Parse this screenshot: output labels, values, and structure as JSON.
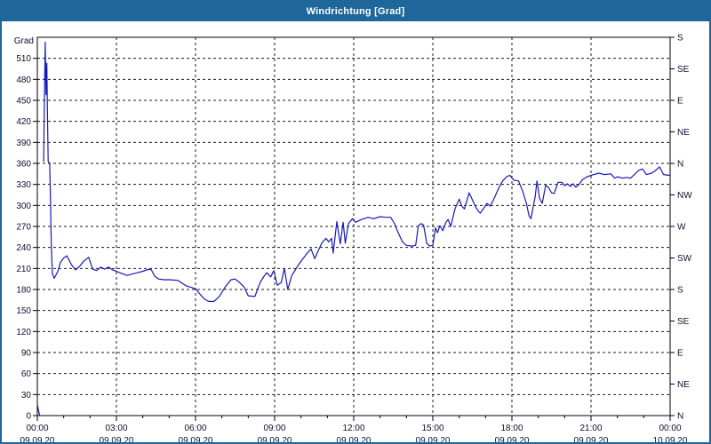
{
  "window": {
    "title": "Windrichtung [Grad]"
  },
  "colors": {
    "titlebar_bg": "#1f669a",
    "titlebar_text": "#ffffff",
    "window_border": "#1f669a",
    "plot_bg": "#ffffff",
    "plot_border": "#000000",
    "grid": "#1c1c1c",
    "tick_text": "#0a1030",
    "line": "#1818bb"
  },
  "chart_data": {
    "type": "line",
    "title": "Windrichtung [Grad]",
    "y_axis_unit_label": "Grad",
    "ylim": [
      0,
      540
    ],
    "y_major_step": 30,
    "y_left_ticks": [
      0,
      30,
      60,
      90,
      120,
      150,
      180,
      210,
      240,
      270,
      300,
      330,
      360,
      390,
      420,
      450,
      480,
      510
    ],
    "y_right_ticks": [
      {
        "deg": 0,
        "label": "N"
      },
      {
        "deg": 45,
        "label": "NE"
      },
      {
        "deg": 90,
        "label": "E"
      },
      {
        "deg": 135,
        "label": "SE"
      },
      {
        "deg": 180,
        "label": "S"
      },
      {
        "deg": 225,
        "label": "SW"
      },
      {
        "deg": 270,
        "label": "W"
      },
      {
        "deg": 315,
        "label": "NW"
      },
      {
        "deg": 360,
        "label": "N"
      },
      {
        "deg": 405,
        "label": "NE"
      },
      {
        "deg": 450,
        "label": "E"
      },
      {
        "deg": 495,
        "label": "SE"
      },
      {
        "deg": 540,
        "label": "S"
      }
    ],
    "xlim_hours": [
      0,
      24
    ],
    "x_minor_step_hours": 1,
    "x_major_ticks": [
      {
        "hour": 0,
        "time": "00:00",
        "date": "09.09.20"
      },
      {
        "hour": 3,
        "time": "03:00",
        "date": "09.09.20"
      },
      {
        "hour": 6,
        "time": "06:00",
        "date": "09.09.20"
      },
      {
        "hour": 9,
        "time": "09:00",
        "date": "09.09.20"
      },
      {
        "hour": 12,
        "time": "12:00",
        "date": "09.09.20"
      },
      {
        "hour": 15,
        "time": "15:00",
        "date": "09.09.20"
      },
      {
        "hour": 18,
        "time": "18:00",
        "date": "09.09.20"
      },
      {
        "hour": 21,
        "time": "21:00",
        "date": "09.09.20"
      },
      {
        "hour": 24,
        "time": "00:00",
        "date": "10.09.20"
      }
    ],
    "grid": "dashed",
    "legend": "none",
    "series": [
      {
        "name": "Windrichtung",
        "unit": "Grad",
        "color": "#1818bb",
        "segments": [
          [
            [
              0,
              16
            ],
            [
              0.05,
              6
            ],
            [
              0.09,
              0
            ]
          ],
          [
            [
              0.24,
              362
            ],
            [
              0.27,
              455
            ],
            [
              0.3,
              533
            ],
            [
              0.33,
              458
            ],
            [
              0.36,
              503
            ],
            [
              0.385,
              430
            ],
            [
              0.41,
              363
            ],
            [
              0.47,
              360
            ],
            [
              0.5,
              308
            ],
            [
              0.53,
              245
            ],
            [
              0.57,
              203
            ],
            [
              0.64,
              196
            ],
            [
              0.78,
              206
            ],
            [
              0.88,
              219
            ],
            [
              1.0,
              225
            ],
            [
              1.12,
              228
            ],
            [
              1.3,
              215
            ],
            [
              1.45,
              208
            ],
            [
              1.6,
              213
            ],
            [
              1.75,
              220
            ],
            [
              1.95,
              226
            ],
            [
              2.1,
              209
            ],
            [
              2.25,
              207
            ],
            [
              2.4,
              212
            ],
            [
              2.55,
              209
            ],
            [
              2.7,
              212
            ],
            [
              2.85,
              208
            ],
            [
              3.0,
              206
            ],
            [
              3.2,
              203
            ],
            [
              3.4,
              200
            ],
            [
              3.6,
              202
            ],
            [
              3.8,
              204
            ],
            [
              4.0,
              206
            ],
            [
              4.15,
              208
            ],
            [
              4.31,
              209
            ],
            [
              4.45,
              199
            ],
            [
              4.6,
              195
            ],
            [
              4.8,
              194
            ],
            [
              5.0,
              194
            ],
            [
              5.33,
              193
            ],
            [
              5.66,
              185
            ],
            [
              6.0,
              181
            ],
            [
              6.2,
              172
            ],
            [
              6.35,
              166
            ],
            [
              6.5,
              163
            ],
            [
              6.7,
              163
            ],
            [
              6.9,
              170
            ],
            [
              7.15,
              185
            ],
            [
              7.35,
              194
            ],
            [
              7.5,
              195
            ],
            [
              7.7,
              189
            ],
            [
              7.85,
              183
            ],
            [
              8.0,
              171
            ],
            [
              8.25,
              170
            ],
            [
              8.45,
              190
            ],
            [
              8.6,
              199
            ],
            [
              8.7,
              204
            ],
            [
              8.85,
              198
            ],
            [
              8.97,
              207
            ],
            [
              9.1,
              186
            ],
            [
              9.25,
              190
            ],
            [
              9.37,
              210
            ],
            [
              9.5,
              180
            ],
            [
              9.65,
              200
            ],
            [
              9.75,
              206
            ],
            [
              9.9,
              215
            ],
            [
              10.05,
              223
            ],
            [
              10.22,
              231
            ],
            [
              10.38,
              238
            ],
            [
              10.52,
              224
            ],
            [
              10.65,
              235
            ],
            [
              10.8,
              247
            ],
            [
              10.95,
              253
            ],
            [
              11.05,
              248
            ],
            [
              11.16,
              253
            ],
            [
              11.22,
              232
            ],
            [
              11.36,
              277
            ],
            [
              11.49,
              245
            ],
            [
              11.6,
              276
            ],
            [
              11.68,
              246
            ],
            [
              11.8,
              274
            ],
            [
              11.95,
              281
            ],
            [
              12.07,
              276
            ],
            [
              12.3,
              280
            ],
            [
              12.55,
              283
            ],
            [
              12.75,
              281
            ],
            [
              13.0,
              284
            ],
            [
              13.2,
              283
            ],
            [
              13.4,
              283
            ],
            [
              13.52,
              276
            ],
            [
              13.7,
              260
            ],
            [
              13.85,
              248
            ],
            [
              14.0,
              243
            ],
            [
              14.2,
              242
            ],
            [
              14.35,
              243
            ],
            [
              14.45,
              271
            ],
            [
              14.55,
              274
            ],
            [
              14.65,
              272
            ],
            [
              14.77,
              246
            ],
            [
              14.88,
              242
            ],
            [
              15.0,
              243
            ],
            [
              15.1,
              268
            ],
            [
              15.18,
              261
            ],
            [
              15.27,
              271
            ],
            [
              15.38,
              264
            ],
            [
              15.5,
              276
            ],
            [
              15.58,
              280
            ],
            [
              15.68,
              270
            ],
            [
              15.84,
              295
            ],
            [
              16.0,
              309
            ],
            [
              16.1,
              299
            ],
            [
              16.2,
              295
            ],
            [
              16.38,
              318
            ],
            [
              16.5,
              308
            ],
            [
              16.62,
              298
            ],
            [
              16.72,
              292
            ],
            [
              16.8,
              289
            ],
            [
              16.95,
              297
            ],
            [
              17.05,
              303
            ],
            [
              17.18,
              299
            ],
            [
              17.35,
              312
            ],
            [
              17.5,
              325
            ],
            [
              17.65,
              335
            ],
            [
              17.8,
              341
            ],
            [
              17.92,
              343
            ],
            [
              18.07,
              336
            ],
            [
              18.25,
              335
            ],
            [
              18.4,
              321
            ],
            [
              18.55,
              303
            ],
            [
              18.65,
              285
            ],
            [
              18.72,
              281
            ],
            [
              18.88,
              312
            ],
            [
              18.95,
              335
            ],
            [
              19.05,
              310
            ],
            [
              19.15,
              303
            ],
            [
              19.28,
              329
            ],
            [
              19.4,
              325
            ],
            [
              19.5,
              318
            ],
            [
              19.6,
              317
            ],
            [
              19.75,
              333
            ],
            [
              19.9,
              333
            ],
            [
              20.0,
              328
            ],
            [
              20.1,
              331
            ],
            [
              20.22,
              327
            ],
            [
              20.32,
              331
            ],
            [
              20.42,
              326
            ],
            [
              20.55,
              330
            ],
            [
              20.68,
              337
            ],
            [
              20.85,
              341
            ],
            [
              21.1,
              344
            ],
            [
              21.3,
              346
            ],
            [
              21.5,
              344
            ],
            [
              21.75,
              345
            ],
            [
              21.9,
              339
            ],
            [
              22.0,
              341
            ],
            [
              22.18,
              339
            ],
            [
              22.35,
              340
            ],
            [
              22.5,
              339
            ],
            [
              22.7,
              346
            ],
            [
              22.8,
              350
            ],
            [
              22.95,
              352
            ],
            [
              23.1,
              344
            ],
            [
              23.3,
              346
            ],
            [
              23.45,
              350
            ],
            [
              23.6,
              355
            ],
            [
              23.75,
              344
            ],
            [
              23.95,
              343
            ],
            [
              24.0,
              343
            ]
          ]
        ]
      }
    ]
  }
}
